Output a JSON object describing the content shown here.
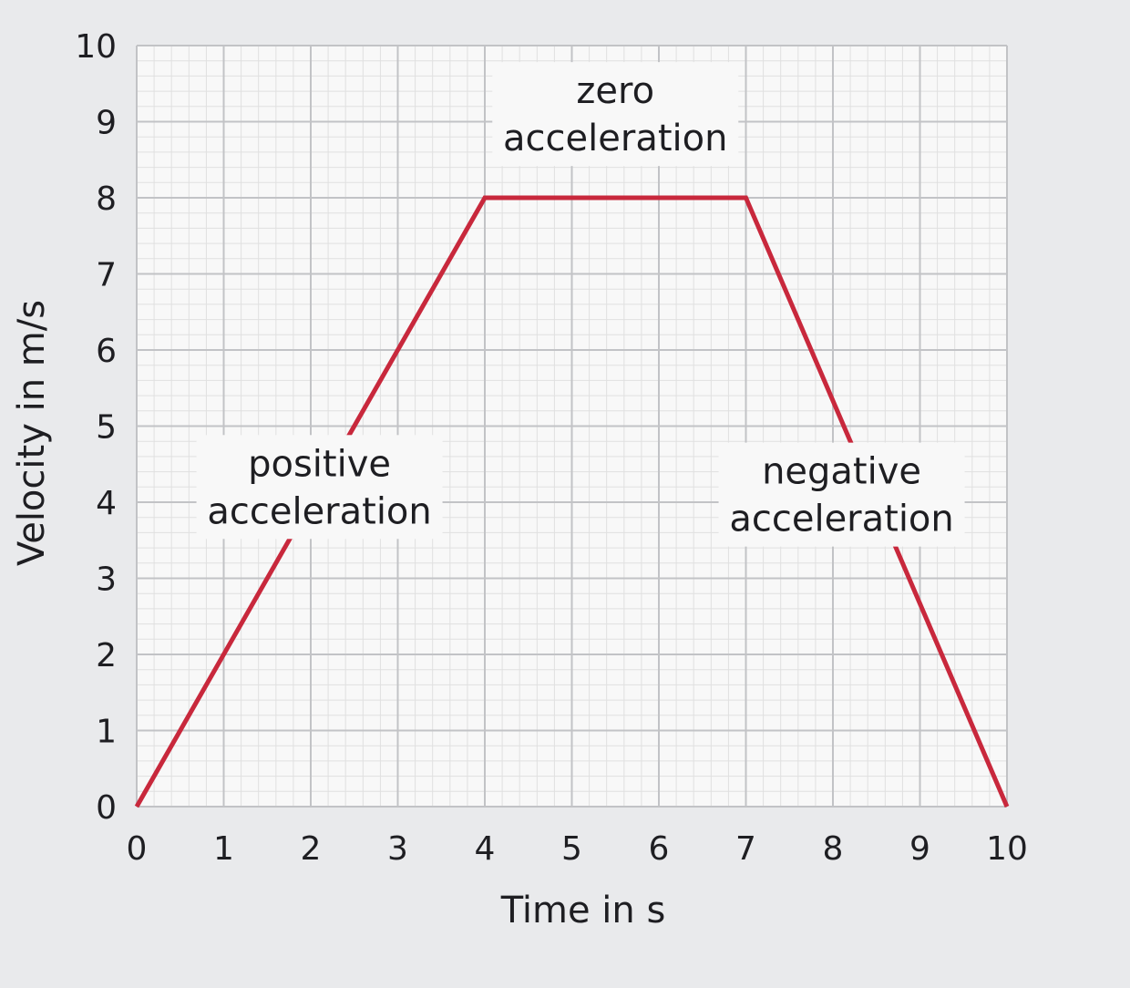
{
  "chart_data": {
    "type": "line",
    "xlabel": "Time in s",
    "ylabel": "Velocity in m/s",
    "xlim": [
      0,
      10
    ],
    "ylim": [
      0,
      10
    ],
    "x_ticks": [
      "0",
      "1",
      "2",
      "3",
      "4",
      "5",
      "6",
      "7",
      "8",
      "9",
      "10"
    ],
    "y_ticks": [
      "0",
      "1",
      "2",
      "3",
      "4",
      "5",
      "6",
      "7",
      "8",
      "9",
      "10"
    ],
    "grid": "on",
    "minor_grid": true,
    "line_color": "#c8283c",
    "series": [
      {
        "x": [
          0,
          4,
          7,
          10
        ],
        "y": [
          0,
          8,
          8,
          0
        ]
      }
    ],
    "annotations": [
      {
        "lines": [
          "zero",
          "acceleration"
        ],
        "at_x": 5.5,
        "at_y": 9.1
      },
      {
        "lines": [
          "positive",
          "acceleration"
        ],
        "at_x": 2.1,
        "at_y": 4.2
      },
      {
        "lines": [
          "negative",
          "acceleration"
        ],
        "at_x": 8.1,
        "at_y": 4.1
      }
    ]
  }
}
